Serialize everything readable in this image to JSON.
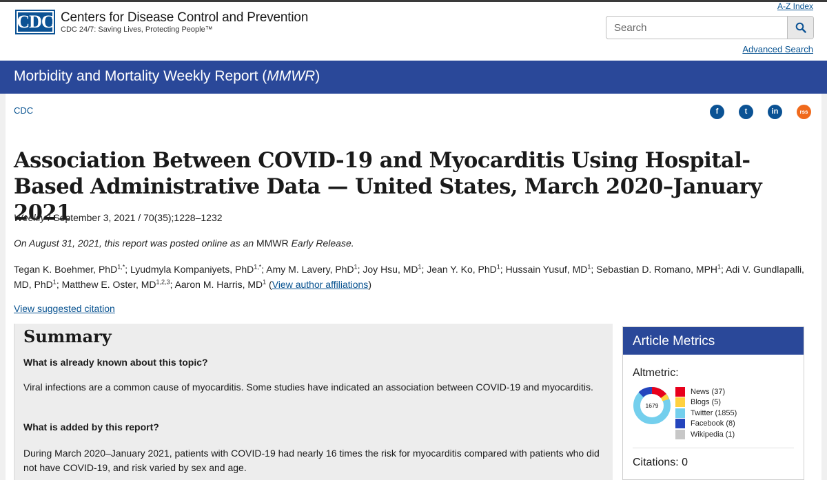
{
  "header": {
    "logo_text": "CDC",
    "org_name": "Centers for Disease Control and Prevention",
    "tagline": "CDC 24/7: Saving Lives, Protecting People™",
    "az_index": "A-Z Index",
    "search_placeholder": "Search",
    "advanced_search": "Advanced Search"
  },
  "banner": {
    "title_main": "Morbidity and Mortality Weekly Report (",
    "title_em": "MMWR",
    "title_close": ")"
  },
  "breadcrumb": "CDC",
  "social": {
    "facebook": "f",
    "twitter": "t",
    "linkedin": "in",
    "rss": "rss"
  },
  "article": {
    "title": "Association Between COVID-19 and Myocarditis Using Hospital-Based Administrative Data — United States, March 2020–January 2021",
    "meta_weekly": "Weekly",
    "meta_rest": " / September 3, 2021 / 70(35);1228–1232",
    "release_a": "On August 31, 2021, this report was posted online as an ",
    "release_b": "MMWR",
    "release_c": " Early Release.",
    "view_affiliations": "View author affiliations",
    "suggested_citation": "View suggested citation"
  },
  "authors": [
    {
      "name": "Tegan K. Boehmer, PhD",
      "sup": "1,*",
      "sep": "; "
    },
    {
      "name": "Lyudmyla Kompaniyets, PhD",
      "sup": "1,*",
      "sep": "; "
    },
    {
      "name": "Amy M. Lavery, PhD",
      "sup": "1",
      "sep": "; "
    },
    {
      "name": "Joy Hsu, MD",
      "sup": "1",
      "sep": "; "
    },
    {
      "name": "Jean Y. Ko, PhD",
      "sup": "1",
      "sep": "; "
    },
    {
      "name": "Hussain Yusuf, MD",
      "sup": "1",
      "sep": "; "
    },
    {
      "name": "Sebastian D. Romano, MPH",
      "sup": "1",
      "sep": "; "
    },
    {
      "name": "Adi V. Gundlapalli, MD, PhD",
      "sup": "1",
      "sep": "; "
    },
    {
      "name": "Matthew E. Oster, MD",
      "sup": "1,2,3",
      "sep": "; "
    },
    {
      "name": "Aaron M. Harris, MD",
      "sup": "1",
      "sep": " ("
    }
  ],
  "authors_close": ")",
  "summary": {
    "heading": "Summary",
    "q1": "What is already known about this topic?",
    "a1": "Viral infections are a common cause of myocarditis. Some studies have indicated an association between COVID-19 and myocarditis.",
    "q2": "What is added by this report?",
    "a2": "During March 2020–January 2021, patients with COVID-19 had nearly 16 times the risk for myocarditis compared with patients who did not have COVID-19, and risk varied by sex and age."
  },
  "metrics": {
    "heading": "Article Metrics",
    "altmetric_label": "Altmetric:",
    "altmetric_score": "1679",
    "legend": [
      {
        "label": "News (37)",
        "color": "#e8001c",
        "value": 37
      },
      {
        "label": "Blogs (5)",
        "color": "#ffd140",
        "value": 5
      },
      {
        "label": "Twitter (1855)",
        "color": "#74cfed",
        "value": 1855
      },
      {
        "label": "Facebook (8)",
        "color": "#2445bd",
        "value": 8
      },
      {
        "label": "Wikipedia (1)",
        "color": "#c7c7c7",
        "value": 1
      }
    ],
    "citations": "Citations: 0"
  }
}
